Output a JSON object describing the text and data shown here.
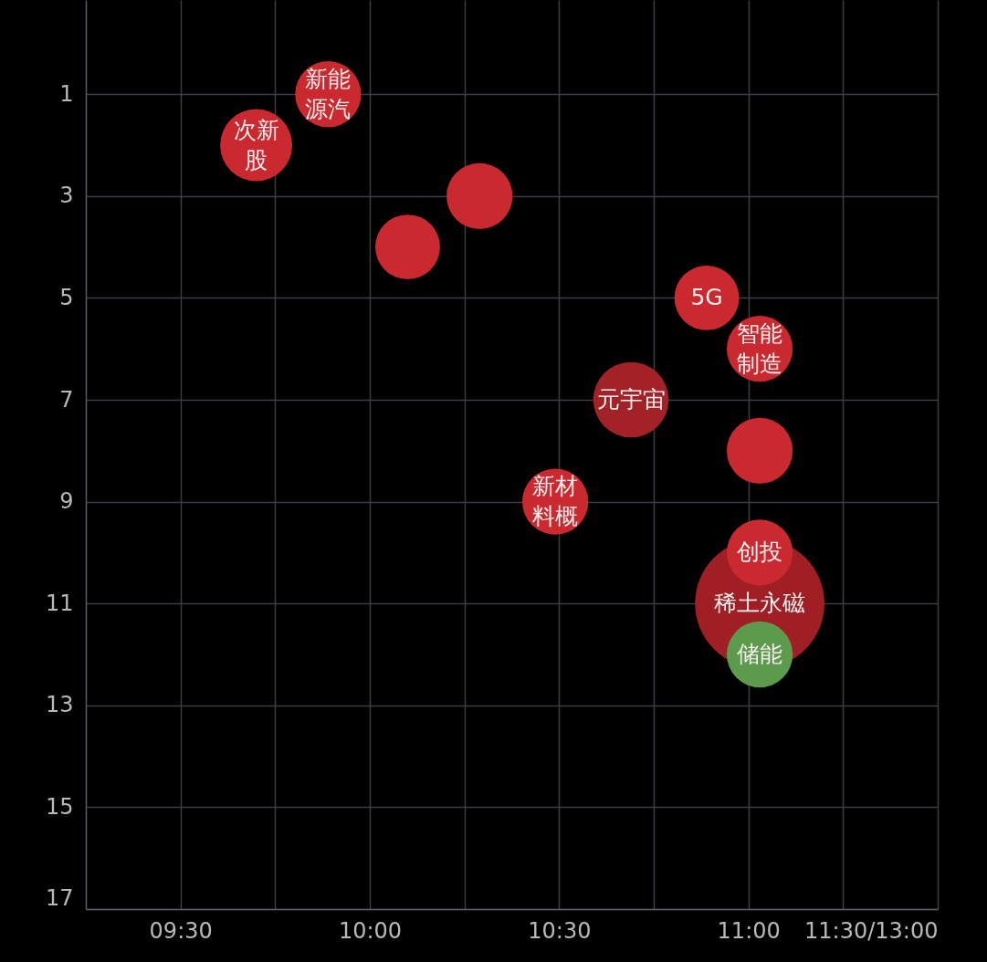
{
  "chart_data": {
    "type": "bubble",
    "x": [
      9.7,
      9.89,
      10.29,
      10.1,
      10.89,
      11.03,
      10.69,
      11.03,
      10.49,
      11.03,
      11.03,
      11.03
    ],
    "values": [
      2,
      1,
      3,
      4,
      5,
      6,
      7,
      8,
      9,
      11,
      10,
      12
    ],
    "sizes": [
      0.31,
      0.26,
      0.26,
      0.25,
      0.25,
      0.26,
      0.34,
      0.26,
      0.26,
      1,
      0.26,
      0.26
    ],
    "colors": [
      "#c9292f",
      "#c9292f",
      "#c9292f",
      "#c9292f",
      "#c9292f",
      "#c9292f",
      "#a32227",
      "#c9292f",
      "#c9292f",
      "#9f1f24",
      "#c9292f",
      "#5c9a4c"
    ],
    "xlim": [
      9.25,
      11.5
    ],
    "ylim": [
      17,
      -0.85
    ],
    "xticks": [
      {
        "value": 9.5,
        "label": "09:30"
      },
      {
        "value": 9.75,
        "label": null
      },
      {
        "value": 10,
        "label": "10:00"
      },
      {
        "value": 10.25,
        "label": null
      },
      {
        "value": 10.5,
        "label": "10:30"
      },
      {
        "value": 10.75,
        "label": null
      },
      {
        "value": 11,
        "label": "11:00"
      },
      {
        "value": 11.25,
        "label": null
      },
      {
        "value": 11.5,
        "label": "11:30/13:00"
      }
    ],
    "yticks": [
      1,
      3,
      5,
      7,
      9,
      11,
      13,
      15,
      17
    ],
    "grid": true,
    "annotations": [
      {
        "text": "次新股",
        "x": 9.7,
        "y": 2
      },
      {
        "text": "新能源汽",
        "x": 9.89,
        "y": 1
      },
      {
        "text": "5G",
        "x": 10.89,
        "y": 5
      },
      {
        "text": "智能制造",
        "x": 11.03,
        "y": 6
      },
      {
        "text": "元宇宙",
        "x": 10.69,
        "y": 7
      },
      {
        "text": "新材料概",
        "x": 10.49,
        "y": 9
      },
      {
        "text": "稀土永磁",
        "x": 11.03,
        "y": 11
      },
      {
        "text": "创投",
        "x": 11.03,
        "y": 10
      },
      {
        "text": "储能",
        "x": 11.03,
        "y": 12
      }
    ]
  }
}
